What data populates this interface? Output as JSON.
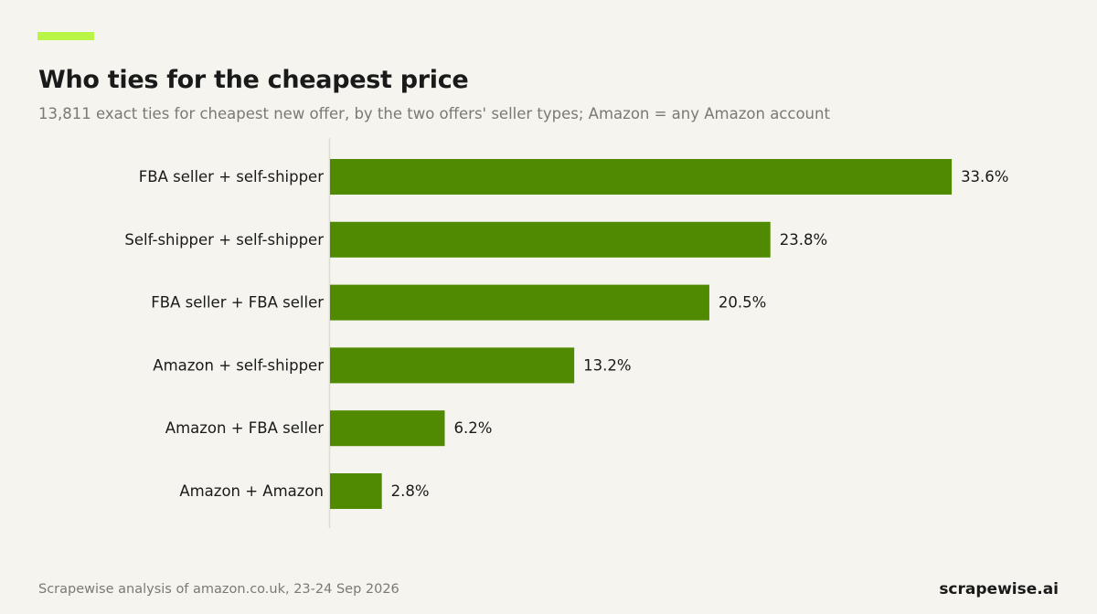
{
  "header": {
    "title": "Who ties for the cheapest price",
    "subtitle": "13,811 exact ties for cheapest new offer, by the two offers' seller types; Amazon = any Amazon account"
  },
  "footer": {
    "source": "Scrapewise analysis of amazon.co.uk, 23-24 Sep 2026",
    "brand": "scrapewise.ai"
  },
  "colors": {
    "background": "#f5f4ee",
    "accent": "#b8f545",
    "bar": "#4f8a00",
    "axis_line": "#dcdccf"
  },
  "chart_data": {
    "type": "bar",
    "orientation": "horizontal",
    "title": "Who ties for the cheapest price",
    "subtitle": "13,811 exact ties for cheapest new offer, by the two offers' seller types; Amazon = any Amazon account",
    "categories": [
      "FBA seller + self-shipper",
      "Self-shipper + self-shipper",
      "FBA seller + FBA seller",
      "Amazon + self-shipper",
      "Amazon + FBA seller",
      "Amazon + Amazon"
    ],
    "values": [
      33.6,
      23.8,
      20.5,
      13.2,
      6.2,
      2.8
    ],
    "value_labels": [
      "33.6%",
      "23.8%",
      "20.5%",
      "13.2%",
      "6.2%",
      "2.8%"
    ],
    "unit": "%",
    "xlim": [
      0,
      40
    ],
    "grid": false,
    "legend": "none"
  }
}
